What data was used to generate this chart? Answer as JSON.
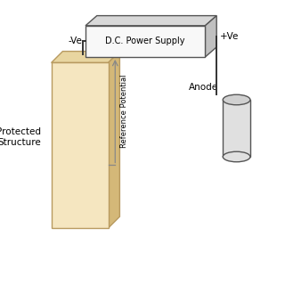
{
  "bg_color": "#ffffff",
  "box_color": "#f8f8f8",
  "box_edge_color": "#555555",
  "structure_face_color": "#f5e6c0",
  "structure_edge_color": "#b89a60",
  "structure_top_color": "#e8d5a0",
  "structure_side_color": "#d4b878",
  "anode_face_color": "#e0e0e0",
  "anode_top_color": "#d0d0d0",
  "anode_edge_color": "#555555",
  "wire_color": "#333333",
  "ref_wire_color": "#888888",
  "label_color": "#000000",
  "ps_label": "D.C. Power Supply",
  "neg_label": "-Ve",
  "pos_label": "+Ve",
  "struct_label": "Protected\nStructure",
  "anode_label": "Anode",
  "ref_label": "Reference Potential",
  "xlim": [
    0,
    10
  ],
  "ylim": [
    0,
    10
  ]
}
